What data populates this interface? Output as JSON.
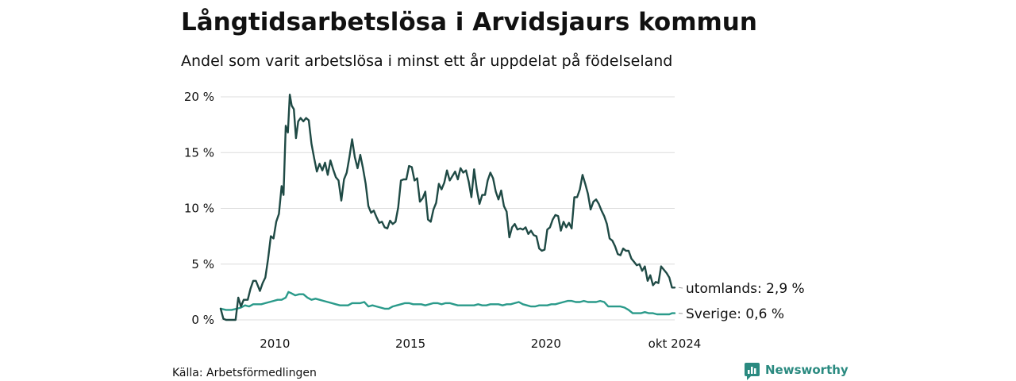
{
  "chart_data": {
    "type": "line",
    "title": "Långtidsarbetslösa i Arvidsjaurs kommun",
    "subtitle": "Andel som varit arbetslösa i minst ett år uppdelat på födelseland",
    "ylim": [
      0,
      20
    ],
    "yticks": [
      0,
      5,
      10,
      15,
      20
    ],
    "ytick_labels": [
      "0 %",
      "5 %",
      "10 %",
      "15 %",
      "20 %"
    ],
    "xlim": [
      2008.0,
      2024.75
    ],
    "xticks": [
      2010,
      2015,
      2020,
      2024.75
    ],
    "xtick_labels": [
      "2010",
      "2015",
      "2020",
      "okt 2024"
    ],
    "series": [
      {
        "name": "utomlands",
        "color": "#1f4a45",
        "end_label": "utomlands: 2,9 %",
        "points": [
          [
            2008.0,
            1.0
          ],
          [
            2008.1,
            0.1
          ],
          [
            2008.2,
            0.0
          ],
          [
            2008.4,
            0.0
          ],
          [
            2008.55,
            0.0
          ],
          [
            2008.65,
            2.0
          ],
          [
            2008.75,
            1.2
          ],
          [
            2008.85,
            1.8
          ],
          [
            2009.0,
            1.8
          ],
          [
            2009.1,
            2.8
          ],
          [
            2009.2,
            3.5
          ],
          [
            2009.3,
            3.5
          ],
          [
            2009.45,
            2.6
          ],
          [
            2009.55,
            3.3
          ],
          [
            2009.65,
            3.8
          ],
          [
            2009.75,
            5.5
          ],
          [
            2009.85,
            7.5
          ],
          [
            2009.95,
            7.3
          ],
          [
            2010.05,
            8.8
          ],
          [
            2010.15,
            9.5
          ],
          [
            2010.25,
            12.0
          ],
          [
            2010.32,
            11.2
          ],
          [
            2010.4,
            17.4
          ],
          [
            2010.48,
            16.8
          ],
          [
            2010.55,
            20.2
          ],
          [
            2010.62,
            19.2
          ],
          [
            2010.7,
            18.9
          ],
          [
            2010.78,
            16.3
          ],
          [
            2010.86,
            17.8
          ],
          [
            2010.95,
            18.1
          ],
          [
            2011.05,
            17.8
          ],
          [
            2011.15,
            18.1
          ],
          [
            2011.25,
            17.9
          ],
          [
            2011.35,
            15.8
          ],
          [
            2011.45,
            14.5
          ],
          [
            2011.55,
            13.3
          ],
          [
            2011.65,
            14.0
          ],
          [
            2011.75,
            13.4
          ],
          [
            2011.85,
            14.1
          ],
          [
            2011.95,
            13.0
          ],
          [
            2012.05,
            14.3
          ],
          [
            2012.15,
            13.5
          ],
          [
            2012.25,
            12.8
          ],
          [
            2012.35,
            12.5
          ],
          [
            2012.45,
            10.7
          ],
          [
            2012.55,
            12.6
          ],
          [
            2012.65,
            13.2
          ],
          [
            2012.75,
            14.6
          ],
          [
            2012.85,
            16.2
          ],
          [
            2012.95,
            14.6
          ],
          [
            2013.05,
            13.6
          ],
          [
            2013.15,
            14.8
          ],
          [
            2013.25,
            13.6
          ],
          [
            2013.35,
            12.2
          ],
          [
            2013.45,
            10.2
          ],
          [
            2013.55,
            9.6
          ],
          [
            2013.65,
            9.8
          ],
          [
            2013.75,
            9.2
          ],
          [
            2013.85,
            8.7
          ],
          [
            2013.95,
            8.8
          ],
          [
            2014.05,
            8.3
          ],
          [
            2014.15,
            8.2
          ],
          [
            2014.25,
            8.9
          ],
          [
            2014.35,
            8.6
          ],
          [
            2014.45,
            8.8
          ],
          [
            2014.55,
            10.1
          ],
          [
            2014.65,
            12.5
          ],
          [
            2014.75,
            12.6
          ],
          [
            2014.85,
            12.6
          ],
          [
            2014.95,
            13.8
          ],
          [
            2015.05,
            13.7
          ],
          [
            2015.15,
            12.5
          ],
          [
            2015.25,
            12.7
          ],
          [
            2015.35,
            10.6
          ],
          [
            2015.45,
            10.9
          ],
          [
            2015.55,
            11.5
          ],
          [
            2015.65,
            9.0
          ],
          [
            2015.75,
            8.8
          ],
          [
            2015.85,
            9.9
          ],
          [
            2015.95,
            10.5
          ],
          [
            2016.05,
            12.2
          ],
          [
            2016.15,
            11.7
          ],
          [
            2016.25,
            12.3
          ],
          [
            2016.35,
            13.4
          ],
          [
            2016.45,
            12.5
          ],
          [
            2016.55,
            12.9
          ],
          [
            2016.65,
            13.3
          ],
          [
            2016.75,
            12.6
          ],
          [
            2016.85,
            13.6
          ],
          [
            2016.95,
            13.2
          ],
          [
            2017.05,
            13.4
          ],
          [
            2017.15,
            12.4
          ],
          [
            2017.25,
            11.0
          ],
          [
            2017.35,
            13.5
          ],
          [
            2017.45,
            11.7
          ],
          [
            2017.55,
            10.4
          ],
          [
            2017.65,
            11.2
          ],
          [
            2017.75,
            11.2
          ],
          [
            2017.85,
            12.5
          ],
          [
            2017.95,
            13.2
          ],
          [
            2018.05,
            12.7
          ],
          [
            2018.15,
            11.5
          ],
          [
            2018.25,
            10.8
          ],
          [
            2018.35,
            11.6
          ],
          [
            2018.45,
            10.2
          ],
          [
            2018.55,
            9.7
          ],
          [
            2018.65,
            7.4
          ],
          [
            2018.75,
            8.3
          ],
          [
            2018.85,
            8.6
          ],
          [
            2018.95,
            8.1
          ],
          [
            2019.05,
            8.2
          ],
          [
            2019.15,
            8.1
          ],
          [
            2019.25,
            8.3
          ],
          [
            2019.35,
            7.7
          ],
          [
            2019.45,
            8.0
          ],
          [
            2019.55,
            7.6
          ],
          [
            2019.65,
            7.5
          ],
          [
            2019.75,
            6.4
          ],
          [
            2019.85,
            6.2
          ],
          [
            2019.95,
            6.3
          ],
          [
            2020.05,
            8.1
          ],
          [
            2020.15,
            8.3
          ],
          [
            2020.25,
            9.0
          ],
          [
            2020.35,
            9.4
          ],
          [
            2020.45,
            9.3
          ],
          [
            2020.55,
            8.0
          ],
          [
            2020.65,
            8.8
          ],
          [
            2020.75,
            8.3
          ],
          [
            2020.85,
            8.7
          ],
          [
            2020.95,
            8.2
          ],
          [
            2021.05,
            11.0
          ],
          [
            2021.15,
            11.0
          ],
          [
            2021.25,
            11.7
          ],
          [
            2021.35,
            13.0
          ],
          [
            2021.45,
            12.2
          ],
          [
            2021.55,
            11.3
          ],
          [
            2021.65,
            9.9
          ],
          [
            2021.75,
            10.6
          ],
          [
            2021.85,
            10.8
          ],
          [
            2021.95,
            10.4
          ],
          [
            2022.05,
            9.8
          ],
          [
            2022.15,
            9.3
          ],
          [
            2022.25,
            8.6
          ],
          [
            2022.35,
            7.3
          ],
          [
            2022.45,
            7.1
          ],
          [
            2022.55,
            6.6
          ],
          [
            2022.65,
            5.9
          ],
          [
            2022.75,
            5.8
          ],
          [
            2022.85,
            6.4
          ],
          [
            2022.95,
            6.2
          ],
          [
            2023.05,
            6.2
          ],
          [
            2023.15,
            5.5
          ],
          [
            2023.25,
            5.2
          ],
          [
            2023.35,
            4.9
          ],
          [
            2023.45,
            5.0
          ],
          [
            2023.55,
            4.4
          ],
          [
            2023.65,
            4.8
          ],
          [
            2023.75,
            3.5
          ],
          [
            2023.85,
            4.0
          ],
          [
            2023.95,
            3.1
          ],
          [
            2024.05,
            3.4
          ],
          [
            2024.15,
            3.3
          ],
          [
            2024.25,
            4.8
          ],
          [
            2024.35,
            4.5
          ],
          [
            2024.45,
            4.2
          ],
          [
            2024.55,
            3.8
          ],
          [
            2024.65,
            2.9
          ],
          [
            2024.75,
            2.9
          ]
        ]
      },
      {
        "name": "Sverige",
        "color": "#2a9a8a",
        "end_label": "Sverige: 0,6 %",
        "points": [
          [
            2008.0,
            1.0
          ],
          [
            2008.2,
            0.9
          ],
          [
            2008.4,
            0.9
          ],
          [
            2008.6,
            1.0
          ],
          [
            2008.75,
            1.1
          ],
          [
            2008.9,
            1.3
          ],
          [
            2009.05,
            1.2
          ],
          [
            2009.2,
            1.4
          ],
          [
            2009.35,
            1.4
          ],
          [
            2009.5,
            1.4
          ],
          [
            2009.65,
            1.5
          ],
          [
            2009.8,
            1.6
          ],
          [
            2009.95,
            1.7
          ],
          [
            2010.1,
            1.8
          ],
          [
            2010.25,
            1.8
          ],
          [
            2010.4,
            2.0
          ],
          [
            2010.5,
            2.5
          ],
          [
            2010.6,
            2.4
          ],
          [
            2010.75,
            2.2
          ],
          [
            2010.9,
            2.3
          ],
          [
            2011.05,
            2.3
          ],
          [
            2011.2,
            2.0
          ],
          [
            2011.35,
            1.8
          ],
          [
            2011.5,
            1.9
          ],
          [
            2011.65,
            1.8
          ],
          [
            2011.8,
            1.7
          ],
          [
            2011.95,
            1.6
          ],
          [
            2012.1,
            1.5
          ],
          [
            2012.25,
            1.4
          ],
          [
            2012.4,
            1.3
          ],
          [
            2012.55,
            1.3
          ],
          [
            2012.7,
            1.3
          ],
          [
            2012.85,
            1.5
          ],
          [
            2013.0,
            1.5
          ],
          [
            2013.15,
            1.5
          ],
          [
            2013.3,
            1.6
          ],
          [
            2013.45,
            1.2
          ],
          [
            2013.6,
            1.3
          ],
          [
            2013.75,
            1.2
          ],
          [
            2013.9,
            1.1
          ],
          [
            2014.05,
            1.0
          ],
          [
            2014.2,
            1.0
          ],
          [
            2014.35,
            1.2
          ],
          [
            2014.5,
            1.3
          ],
          [
            2014.65,
            1.4
          ],
          [
            2014.8,
            1.5
          ],
          [
            2014.95,
            1.5
          ],
          [
            2015.1,
            1.4
          ],
          [
            2015.25,
            1.4
          ],
          [
            2015.4,
            1.4
          ],
          [
            2015.55,
            1.3
          ],
          [
            2015.7,
            1.4
          ],
          [
            2015.85,
            1.5
          ],
          [
            2016.0,
            1.5
          ],
          [
            2016.15,
            1.4
          ],
          [
            2016.3,
            1.5
          ],
          [
            2016.45,
            1.5
          ],
          [
            2016.6,
            1.4
          ],
          [
            2016.75,
            1.3
          ],
          [
            2016.9,
            1.3
          ],
          [
            2017.05,
            1.3
          ],
          [
            2017.2,
            1.3
          ],
          [
            2017.35,
            1.3
          ],
          [
            2017.5,
            1.4
          ],
          [
            2017.65,
            1.3
          ],
          [
            2017.8,
            1.3
          ],
          [
            2017.95,
            1.4
          ],
          [
            2018.1,
            1.4
          ],
          [
            2018.25,
            1.4
          ],
          [
            2018.4,
            1.3
          ],
          [
            2018.55,
            1.4
          ],
          [
            2018.7,
            1.4
          ],
          [
            2018.85,
            1.5
          ],
          [
            2019.0,
            1.6
          ],
          [
            2019.15,
            1.4
          ],
          [
            2019.3,
            1.3
          ],
          [
            2019.45,
            1.2
          ],
          [
            2019.6,
            1.2
          ],
          [
            2019.75,
            1.3
          ],
          [
            2019.9,
            1.3
          ],
          [
            2020.05,
            1.3
          ],
          [
            2020.2,
            1.4
          ],
          [
            2020.35,
            1.4
          ],
          [
            2020.5,
            1.5
          ],
          [
            2020.65,
            1.6
          ],
          [
            2020.8,
            1.7
          ],
          [
            2020.95,
            1.7
          ],
          [
            2021.1,
            1.6
          ],
          [
            2021.25,
            1.6
          ],
          [
            2021.4,
            1.7
          ],
          [
            2021.55,
            1.6
          ],
          [
            2021.7,
            1.6
          ],
          [
            2021.85,
            1.6
          ],
          [
            2022.0,
            1.7
          ],
          [
            2022.15,
            1.6
          ],
          [
            2022.3,
            1.2
          ],
          [
            2022.45,
            1.2
          ],
          [
            2022.6,
            1.2
          ],
          [
            2022.75,
            1.2
          ],
          [
            2022.9,
            1.1
          ],
          [
            2023.05,
            0.9
          ],
          [
            2023.2,
            0.6
          ],
          [
            2023.35,
            0.6
          ],
          [
            2023.5,
            0.6
          ],
          [
            2023.65,
            0.7
          ],
          [
            2023.8,
            0.6
          ],
          [
            2023.95,
            0.6
          ],
          [
            2024.1,
            0.5
          ],
          [
            2024.25,
            0.5
          ],
          [
            2024.4,
            0.5
          ],
          [
            2024.55,
            0.5
          ],
          [
            2024.65,
            0.6
          ],
          [
            2024.75,
            0.6
          ]
        ]
      }
    ]
  },
  "footer": {
    "source": "Källa: Arbetsförmedlingen",
    "brand": "Newsworthy"
  }
}
